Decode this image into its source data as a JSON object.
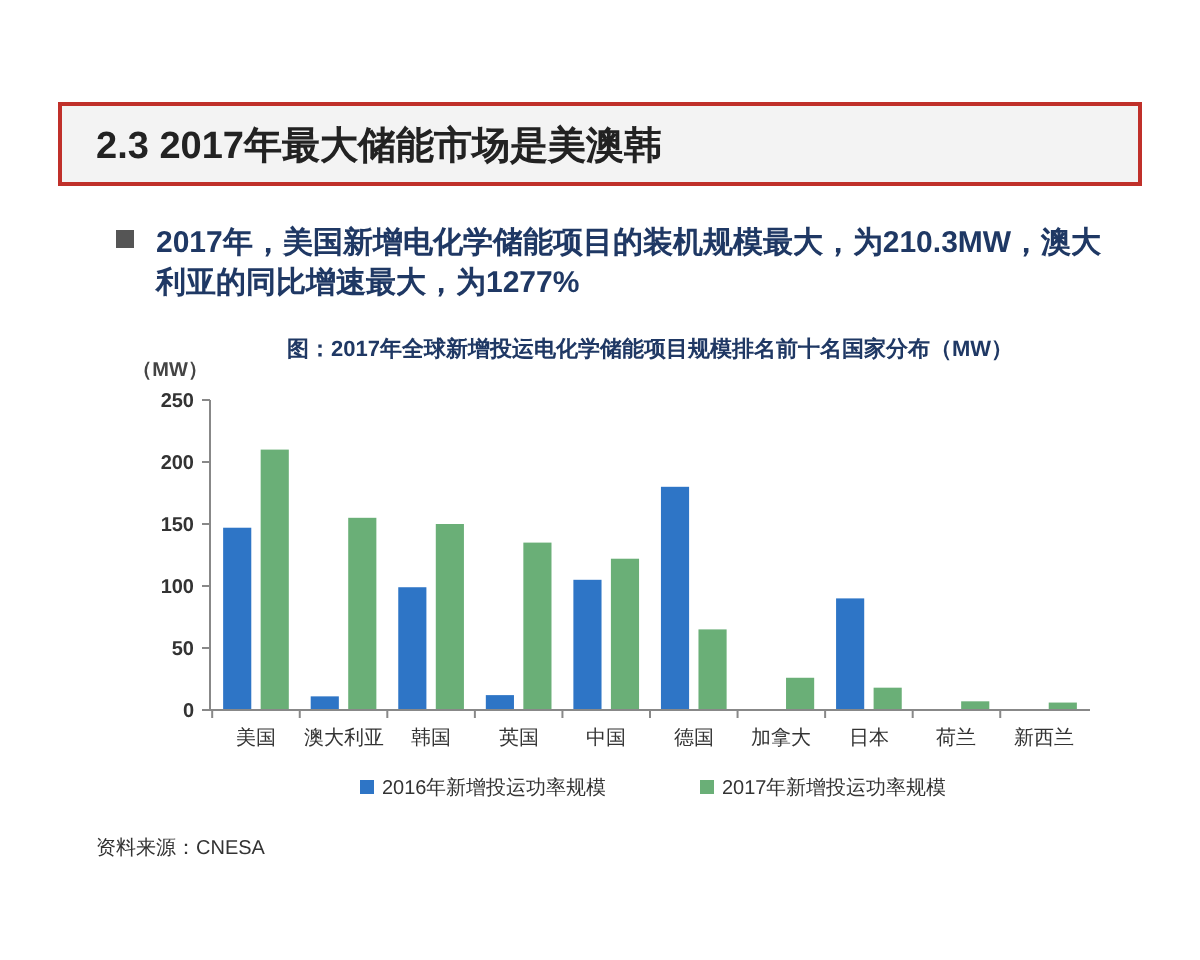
{
  "chart_data": {
    "type": "bar",
    "title": "2.3 2017年最大储能市场是美澳韩",
    "subtitle": "2017年，美国新增电化学储能项目的装机规模最大，为210.3MW，澳大利亚的同比增速最大，为1277%",
    "annotations": [
      "图：2017年全球新增投运电化学储能项目规模排名前十名国家分布（MW）",
      "资料来源：CNESA"
    ],
    "ylabel": "（MW）",
    "categories": [
      "美国",
      "澳大利亚",
      "韩国",
      "英国",
      "中国",
      "德国",
      "加拿大",
      "日本",
      "荷兰",
      "新西兰"
    ],
    "series": [
      {
        "name": "2016年新增投运功率规模",
        "color": "#2e75c6",
        "values": [
          147,
          11,
          99,
          12,
          105,
          180,
          null,
          90,
          null,
          null
        ]
      },
      {
        "name": "2017年新增投运功率规模",
        "color": "#6aaf77",
        "values": [
          210,
          155,
          150,
          135,
          122,
          65,
          26,
          18,
          7,
          6
        ]
      }
    ],
    "ylim": [
      0,
      250
    ],
    "yticks": [
      0,
      50,
      100,
      150,
      200,
      250
    ],
    "grid": false,
    "legend": "bottom"
  }
}
